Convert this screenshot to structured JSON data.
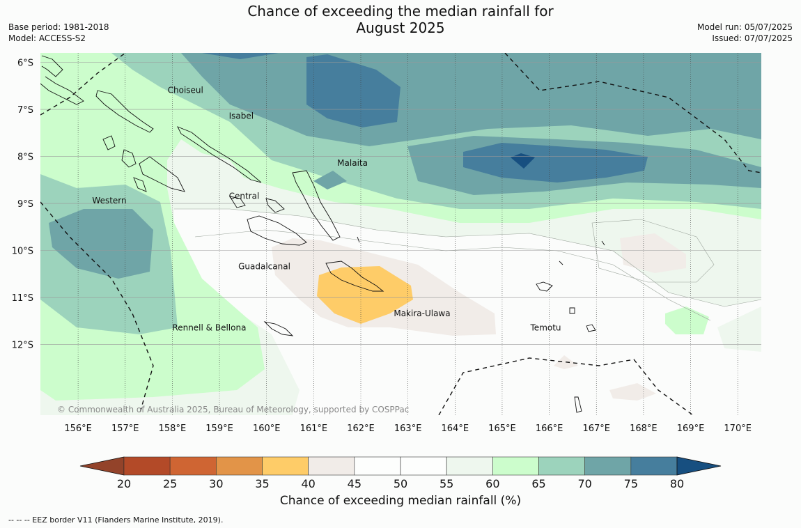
{
  "title": {
    "line1": "Chance of exceeding the median rainfall for",
    "line2": "August 2025"
  },
  "meta": {
    "base_period": "Base period: 1981-2018",
    "model": "Model: ACCESS-S2",
    "model_run": "Model run: 05/07/2025",
    "issued": "Issued: 07/07/2025"
  },
  "map": {
    "lon_range": [
      155.2,
      170.5
    ],
    "lat_range": [
      -13.5,
      -5.8
    ],
    "lat_ticks": [
      {
        "value": -6,
        "label": "6°S"
      },
      {
        "value": -7,
        "label": "7°S"
      },
      {
        "value": -8,
        "label": "8°S"
      },
      {
        "value": -9,
        "label": "9°S"
      },
      {
        "value": -10,
        "label": "10°S"
      },
      {
        "value": -11,
        "label": "11°S"
      },
      {
        "value": -12,
        "label": "12°S"
      }
    ],
    "lon_ticks": [
      {
        "value": 156,
        "label": "156°E"
      },
      {
        "value": 157,
        "label": "157°E"
      },
      {
        "value": 158,
        "label": "158°E"
      },
      {
        "value": 159,
        "label": "159°E"
      },
      {
        "value": 160,
        "label": "160°E"
      },
      {
        "value": 161,
        "label": "161°E"
      },
      {
        "value": 162,
        "label": "162°E"
      },
      {
        "value": 163,
        "label": "163°E"
      },
      {
        "value": 164,
        "label": "164°E"
      },
      {
        "value": 165,
        "label": "165°E"
      },
      {
        "value": 166,
        "label": "166°E"
      },
      {
        "value": 167,
        "label": "167°E"
      },
      {
        "value": 168,
        "label": "168°E"
      },
      {
        "value": 169,
        "label": "169°E"
      },
      {
        "value": 170,
        "label": "170°E"
      }
    ],
    "province_labels": [
      {
        "name": "Choiseul",
        "lon": 157.9,
        "lat": -6.65
      },
      {
        "name": "Isabel",
        "lon": 159.2,
        "lat": -7.2
      },
      {
        "name": "Malaita",
        "lon": 161.5,
        "lat": -8.2
      },
      {
        "name": "Western",
        "lon": 156.3,
        "lat": -9.0
      },
      {
        "name": "Central",
        "lon": 159.2,
        "lat": -8.9
      },
      {
        "name": "Guadalcanal",
        "lon": 159.4,
        "lat": -10.4
      },
      {
        "name": "Makira-Ulawa",
        "lon": 162.7,
        "lat": -11.4
      },
      {
        "name": "Rennell & Bellona",
        "lon": 158.0,
        "lat": -11.7
      },
      {
        "name": "Temotu",
        "lon": 165.6,
        "lat": -11.7
      }
    ],
    "copyright": "© Commonwealth of Australia 2025, Bureau of Meteorology, supported by COSPPac"
  },
  "colorbar": {
    "levels": [
      20,
      25,
      30,
      35,
      40,
      45,
      50,
      55,
      60,
      65,
      70,
      75,
      80
    ],
    "colors": [
      "#b34a28",
      "#cf6533",
      "#e29448",
      "#fecc68",
      "#f1ece8",
      "#fdfefd",
      "#fdfefd",
      "#eef7ee",
      "#ccfdcc",
      "#9cd3bc",
      "#6fa5a7",
      "#467e9d"
    ],
    "under_color": "#93432a",
    "over_color": "#174f80",
    "label": "Chance of exceeding median rainfall (%)"
  },
  "footnote": "--  --  -- EEZ border V11 (Flanders Marine Institute, 2019)."
}
